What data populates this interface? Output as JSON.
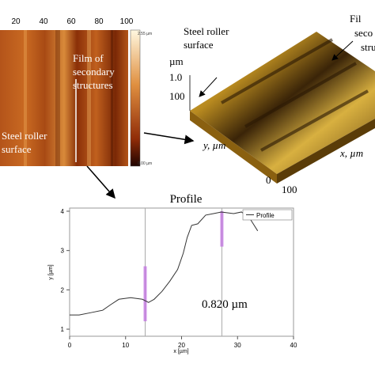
{
  "figure": {
    "map_xticks": [
      "20",
      "40",
      "60",
      "80",
      "100"
    ],
    "colorbar_top": "2.55 µm",
    "colorbar_bottom": "0.00 µm",
    "map_film_label": [
      "Film of",
      "secondary",
      "structures"
    ],
    "map_steel_label": [
      "Steel roller",
      "surface"
    ],
    "surf_steel_label": [
      "Steel roller",
      "surface"
    ],
    "surf_film_label": [
      "Fil",
      "seco",
      "stru"
    ],
    "surf_z_unit": "µm",
    "surf_z_tick": "1.0",
    "surf_y_tick": "100",
    "surf_y_label": "y, µm",
    "surf_x_label": "x, µm",
    "surf_x_tick": "100",
    "surf_origin": "0"
  },
  "chart_data": {
    "type": "line",
    "title": "Profile",
    "x_label": "x [µm]",
    "y_label": "y [µm]",
    "xlim": [
      0,
      40
    ],
    "ylim": [
      0.82,
      4.08
    ],
    "xticks": [
      0,
      10,
      20,
      30,
      40
    ],
    "yticks": [
      1,
      2,
      3,
      4
    ],
    "series": [
      {
        "name": "Profile",
        "color": "#333333",
        "x": [
          0,
          1.7,
          3.8,
          5.9,
          7.3,
          8.8,
          10.9,
          13,
          14.1,
          15.1,
          16.5,
          17.9,
          19.3,
          20.3,
          21,
          21.8,
          22.9,
          24.3,
          25.7,
          27.1,
          29.3,
          30.7,
          32.1,
          32.8,
          33.6
        ],
        "values": [
          1.36,
          1.36,
          1.42,
          1.48,
          1.62,
          1.76,
          1.8,
          1.76,
          1.68,
          1.76,
          1.96,
          2.22,
          2.52,
          2.93,
          3.33,
          3.64,
          3.68,
          3.9,
          3.94,
          3.98,
          3.94,
          3.98,
          3.84,
          3.68,
          3.5
        ]
      }
    ],
    "cursors_x": [
      13.5,
      27.2
    ],
    "annotation": "0.820 µm",
    "legend": "upper right"
  }
}
